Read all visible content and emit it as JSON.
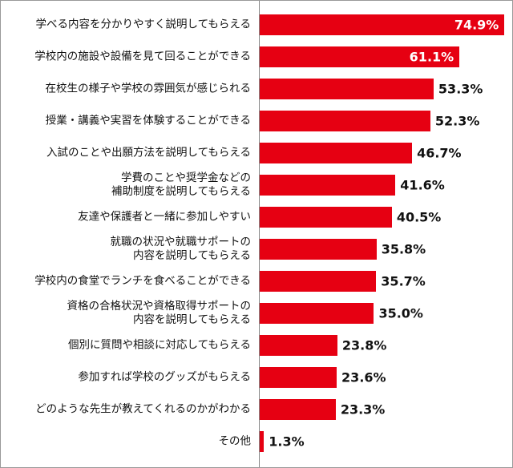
{
  "chart_data": {
    "type": "barh",
    "color": "#e60012",
    "categories": [
      "学べる内容を分かりやすく説明してもらえる",
      "学校内の施設や設備を見て回ることができる",
      "在校生の様子や学校の雰囲気が感じられる",
      "授業・講義や実習を体験することができる",
      "入試のことや出願方法を説明してもらえる",
      "学費のことや奨学金などの\n補助制度を説明してもらえる",
      "友達や保護者と一緒に参加しやすい",
      "就職の状況や就職サポートの\n内容を説明してもらえる",
      "学校内の食堂でランチを食べることができる",
      "資格の合格状況や資格取得サポートの\n内容を説明してもらえる",
      "個別に質問や相談に対応してもらえる",
      "参加すれば学校のグッズがもらえる",
      "どのような先生が教えてくれるのかがわかる",
      "その他"
    ],
    "values": [
      74.9,
      61.1,
      53.3,
      52.3,
      46.7,
      41.6,
      40.5,
      35.8,
      35.7,
      35.0,
      23.8,
      23.6,
      23.3,
      1.3
    ],
    "value_labels": [
      "74.9%",
      "61.1%",
      "53.3%",
      "52.3%",
      "46.7%",
      "41.6%",
      "40.5%",
      "35.8%",
      "35.7%",
      "35.0%",
      "23.8%",
      "23.6%",
      "23.3%",
      "1.3%"
    ]
  }
}
